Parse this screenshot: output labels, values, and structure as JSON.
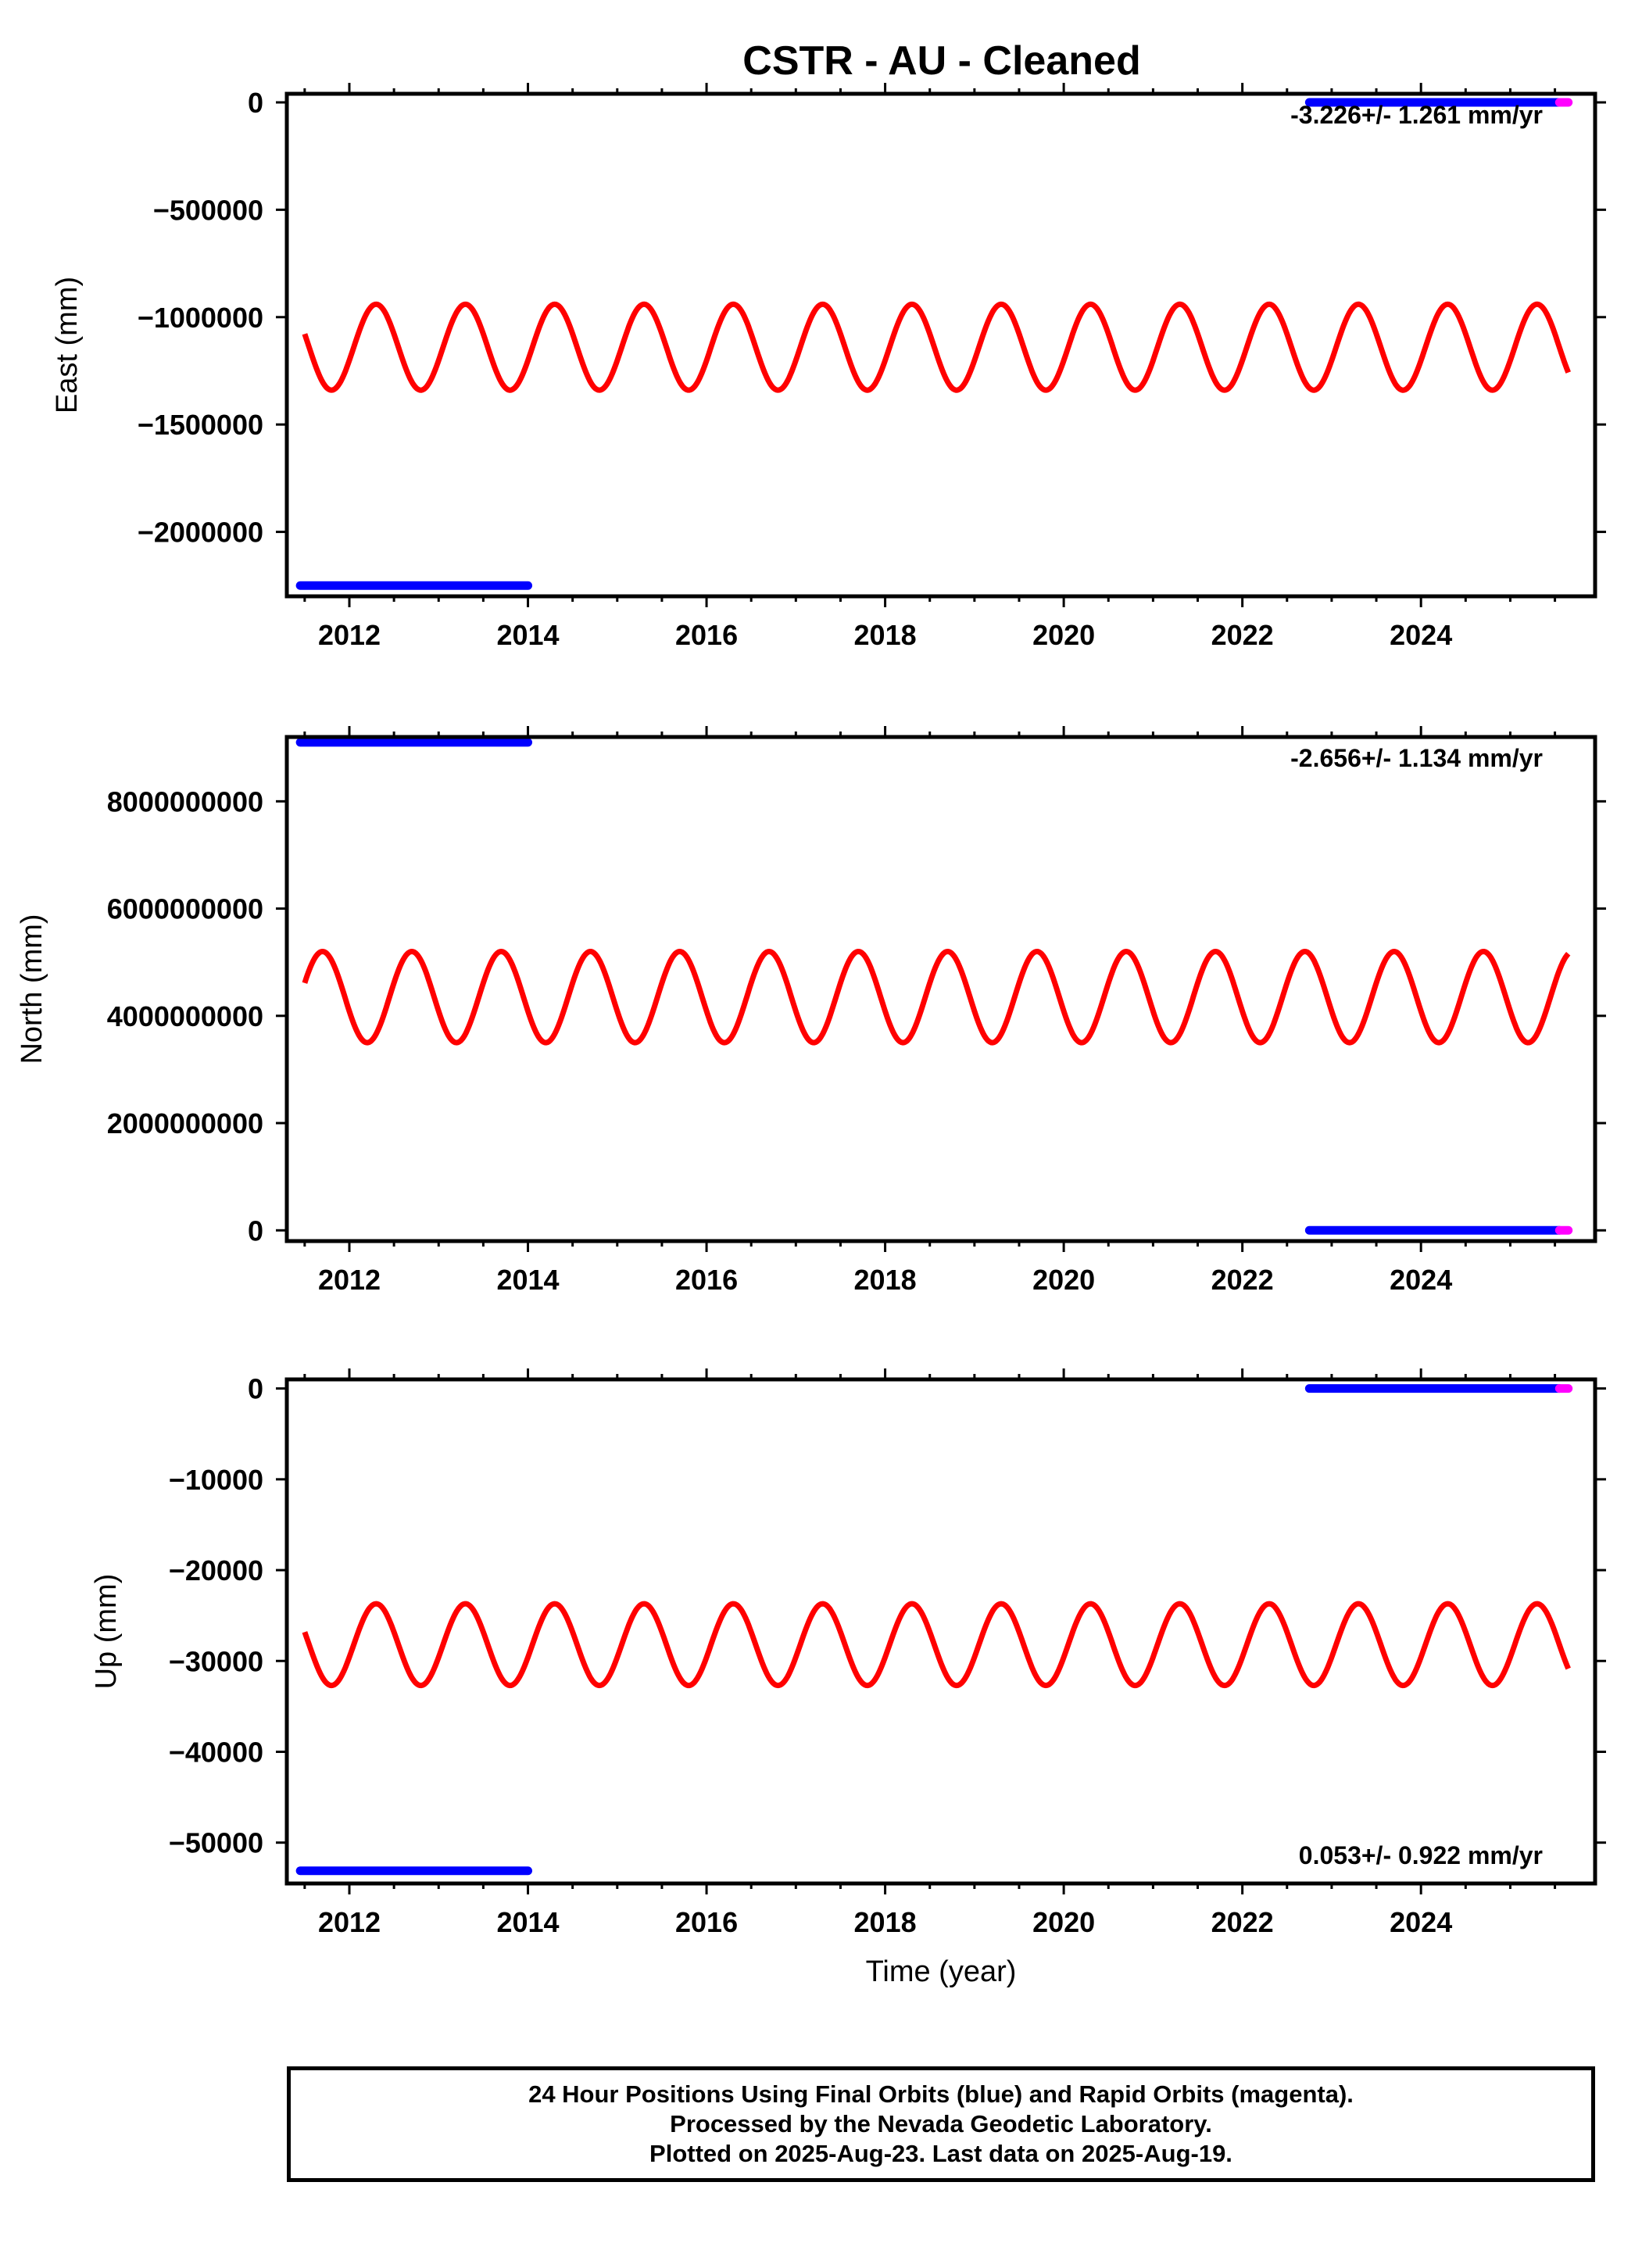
{
  "title": "CSTR  - AU - Cleaned",
  "colors": {
    "final_orbits": "#0000ff",
    "rapid_orbits": "#ff00ff",
    "model_fit": "#ff0000",
    "axes": "#000000"
  },
  "footer": {
    "line1": "24 Hour Positions Using Final Orbits (blue) and Rapid Orbits (magenta).",
    "line2": "Processed by the Nevada Geodetic Laboratory.",
    "line3": "Plotted on 2025-Aug-23. Last data on 2025-Aug-19."
  },
  "chart_data": [
    {
      "type": "scatter",
      "panel": "east",
      "ylabel": "East (mm)",
      "xlabel": "",
      "xlim": [
        2011.3,
        2025.95
      ],
      "ylim": [
        -2300000,
        40000
      ],
      "xticks": [
        2012,
        2014,
        2016,
        2018,
        2020,
        2022,
        2024
      ],
      "xtick_labels": [
        "2012",
        "2014",
        "2016",
        "2018",
        "2020",
        "2022",
        "2024"
      ],
      "yticks": [
        0,
        -500000,
        -1000000,
        -1500000,
        -2000000
      ],
      "ytick_labels": [
        "0",
        "−500000",
        "−1000000",
        "−1500000",
        "−2000000"
      ],
      "rate_text": "-3.226+/- 1.261 mm/yr",
      "rate_position": "top-right",
      "series": [
        {
          "role": "final_orbits",
          "segments": [
            {
              "x": [
                2011.45,
                2014.0
              ],
              "y": -2250000
            },
            {
              "x": [
                2022.75,
                2025.55
              ],
              "y": 0
            }
          ]
        },
        {
          "role": "rapid_orbits",
          "segments": [
            {
              "x": [
                2025.55,
                2025.65
              ],
              "y": 0
            }
          ]
        },
        {
          "role": "model_fit",
          "x_range": [
            2011.5,
            2025.65
          ],
          "mean": -1140000,
          "amplitude": 200000,
          "period_years": 1.0,
          "min_at": 2011.8
        }
      ]
    },
    {
      "type": "scatter",
      "panel": "north",
      "ylabel": "North (mm)",
      "xlabel": "",
      "xlim": [
        2011.3,
        2025.95
      ],
      "ylim": [
        -200000000,
        9200000000
      ],
      "xticks": [
        2012,
        2014,
        2016,
        2018,
        2020,
        2022,
        2024
      ],
      "xtick_labels": [
        "2012",
        "2014",
        "2016",
        "2018",
        "2020",
        "2022",
        "2024"
      ],
      "yticks": [
        0,
        2000000000,
        4000000000,
        6000000000,
        8000000000
      ],
      "ytick_labels": [
        "0",
        "2000000000",
        "4000000000",
        "6000000000",
        "8000000000"
      ],
      "rate_text": "-2.656+/- 1.134 mm/yr",
      "rate_position": "top-right",
      "series": [
        {
          "role": "final_orbits",
          "segments": [
            {
              "x": [
                2011.45,
                2014.0
              ],
              "y": 9100000000
            },
            {
              "x": [
                2022.75,
                2025.55
              ],
              "y": 0
            }
          ]
        },
        {
          "role": "rapid_orbits",
          "segments": [
            {
              "x": [
                2025.55,
                2025.65
              ],
              "y": 0
            }
          ]
        },
        {
          "role": "model_fit",
          "x_range": [
            2011.5,
            2025.65
          ],
          "mean": 4350000000,
          "amplitude": 850000000,
          "period_years": 1.0,
          "max_at": 2011.7
        }
      ]
    },
    {
      "type": "scatter",
      "panel": "up",
      "ylabel": "Up (mm)",
      "xlabel": "Time (year)",
      "xlim": [
        2011.3,
        2025.95
      ],
      "ylim": [
        -54500,
        1000
      ],
      "xticks": [
        2012,
        2014,
        2016,
        2018,
        2020,
        2022,
        2024
      ],
      "xtick_labels": [
        "2012",
        "2014",
        "2016",
        "2018",
        "2020",
        "2022",
        "2024"
      ],
      "yticks": [
        0,
        -10000,
        -20000,
        -30000,
        -40000,
        -50000
      ],
      "ytick_labels": [
        "0",
        "−10000",
        "−20000",
        "−30000",
        "−40000",
        "−50000"
      ],
      "rate_text": "0.053+/- 0.922 mm/yr",
      "rate_position": "bottom-right",
      "series": [
        {
          "role": "final_orbits",
          "segments": [
            {
              "x": [
                2011.45,
                2014.0
              ],
              "y": -53100
            },
            {
              "x": [
                2022.75,
                2025.55
              ],
              "y": 0
            }
          ]
        },
        {
          "role": "rapid_orbits",
          "segments": [
            {
              "x": [
                2025.55,
                2025.65
              ],
              "y": 0
            }
          ]
        },
        {
          "role": "model_fit",
          "x_range": [
            2011.5,
            2025.65
          ],
          "mean": -28200,
          "amplitude": 4500,
          "period_years": 1.0,
          "min_at": 2011.8
        }
      ]
    }
  ]
}
